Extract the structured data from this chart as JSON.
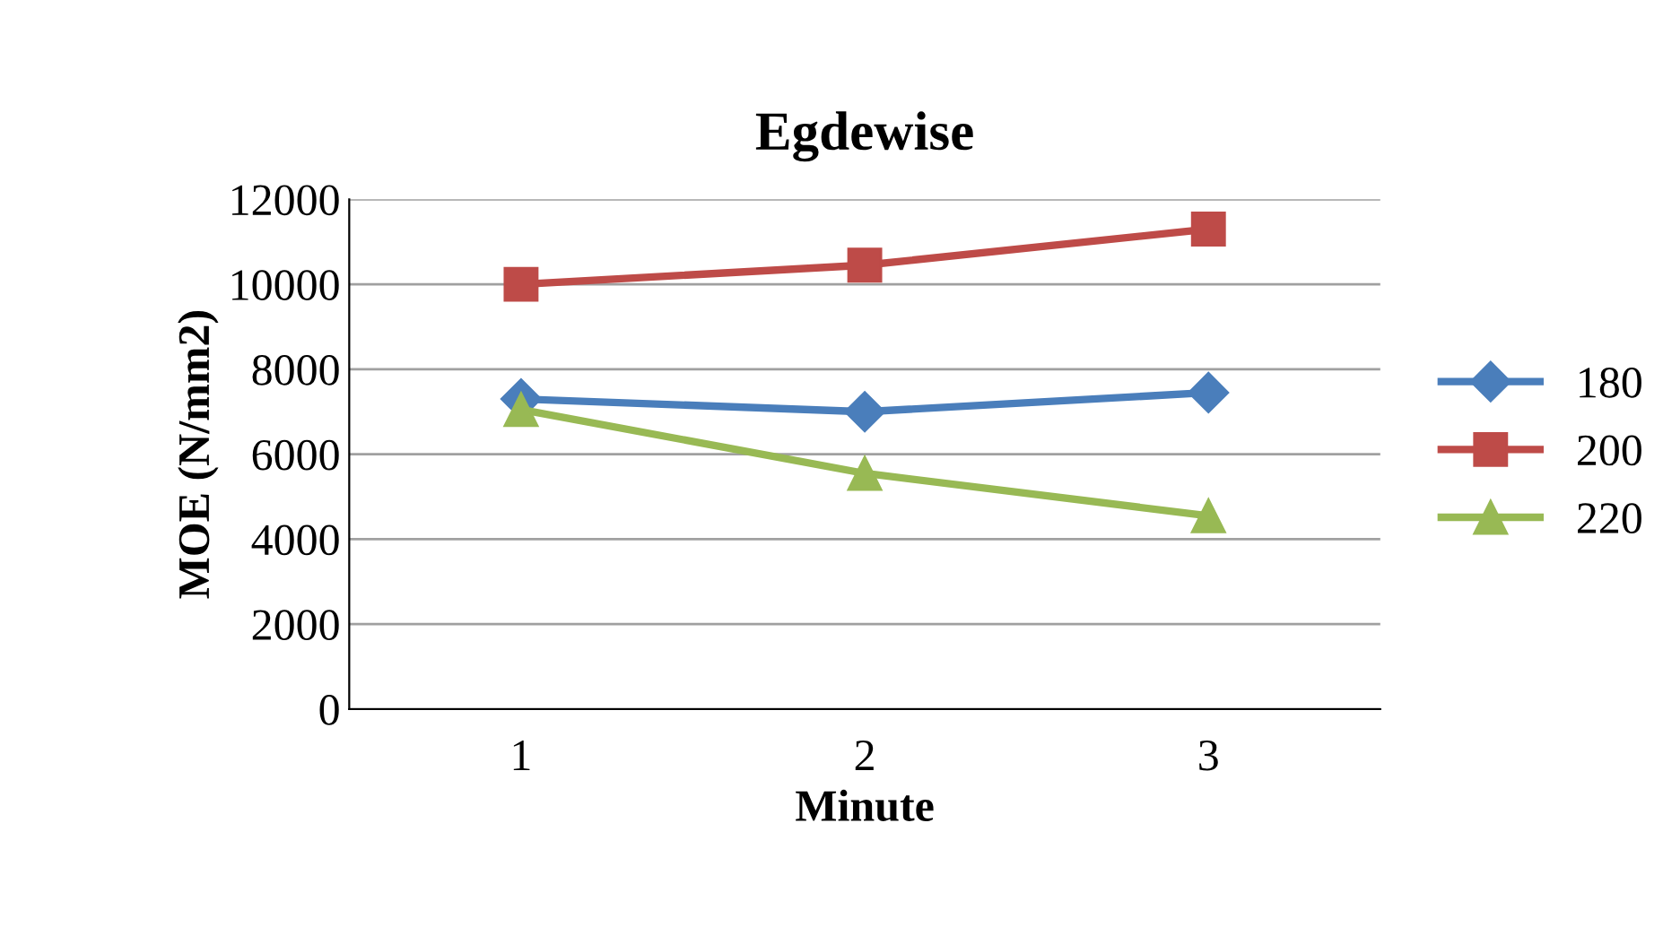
{
  "chart_data": {
    "type": "line",
    "title": "Egdewise",
    "xlabel": "Minute",
    "ylabel": "MOE (N/mm2)",
    "categories": [
      "1",
      "2",
      "3"
    ],
    "series": [
      {
        "name": "180",
        "color": "#4a7ebb",
        "marker": "diamond",
        "values": [
          7300,
          7000,
          7450
        ]
      },
      {
        "name": "200",
        "color": "#be4b48",
        "marker": "square",
        "values": [
          10000,
          10450,
          11300
        ]
      },
      {
        "name": "220",
        "color": "#98b954",
        "marker": "triangle",
        "values": [
          7050,
          5550,
          4550
        ]
      }
    ],
    "ylim": [
      0,
      12000
    ],
    "yticks": [
      0,
      2000,
      4000,
      6000,
      8000,
      10000,
      12000
    ],
    "grid": "y",
    "legend": "right",
    "line_style": "solid"
  }
}
